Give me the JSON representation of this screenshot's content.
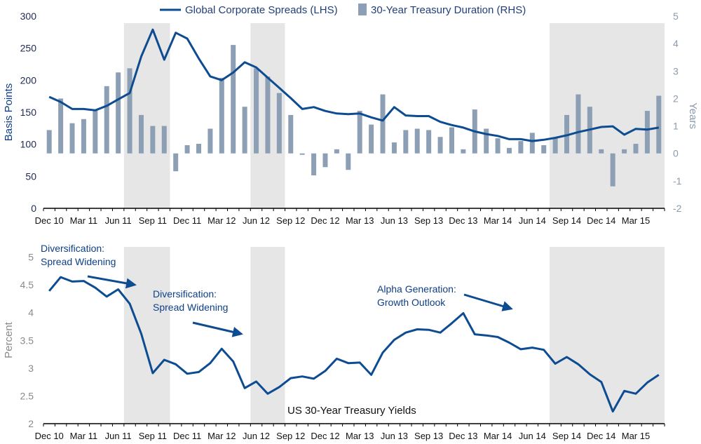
{
  "legend": {
    "line_label": "Global Corporate Spreads (LHS)",
    "bar_label": "30-Year Treasury Duration (RHS)"
  },
  "colors": {
    "line": "#0e4c92",
    "bar": "#8d9fb4",
    "shade": "#e6e6e6"
  },
  "chart_data": [
    {
      "type": "bar",
      "position": "top",
      "ylabel_left": "Basis Points",
      "ylabel_right": "Years",
      "left_axis": {
        "ylim": [
          0,
          300
        ],
        "ticks": [
          0,
          50,
          100,
          150,
          200,
          250,
          300
        ]
      },
      "right_axis": {
        "ylim": [
          -2,
          5
        ],
        "ticks": [
          -2,
          -1,
          0,
          1,
          2,
          3,
          4,
          5
        ]
      },
      "x_labels": [
        "Dec 10",
        "Mar 11",
        "Jun 11",
        "Sep 11",
        "Dec 11",
        "Mar 12",
        "Jun 12",
        "Sep 12",
        "Dec 12",
        "Mar 13",
        "Jun 13",
        "Sep 13",
        "Dec 13",
        "Mar 14",
        "Jun 14",
        "Sep 14",
        "Dec 14",
        "Mar 15"
      ],
      "shaded_periods": [
        [
          "2011-07",
          "2011-10"
        ],
        [
          "2012-06",
          "2012-08"
        ],
        [
          "2014-08",
          "2015-05"
        ]
      ],
      "series": [
        {
          "name": "Global Corporate Spreads (LHS)",
          "type": "line",
          "axis": "left",
          "x": [
            "2010-12",
            "2011-01",
            "2011-02",
            "2011-03",
            "2011-04",
            "2011-05",
            "2011-06",
            "2011-07",
            "2011-08",
            "2011-09",
            "2011-10",
            "2011-11",
            "2011-12",
            "2012-01",
            "2012-02",
            "2012-03",
            "2012-04",
            "2012-05",
            "2012-06",
            "2012-07",
            "2012-08",
            "2012-09",
            "2012-10",
            "2012-11",
            "2012-12",
            "2013-01",
            "2013-02",
            "2013-03",
            "2013-04",
            "2013-05",
            "2013-06",
            "2013-07",
            "2013-08",
            "2013-09",
            "2013-10",
            "2013-11",
            "2013-12",
            "2014-01",
            "2014-02",
            "2014-03",
            "2014-04",
            "2014-05",
            "2014-06",
            "2014-07",
            "2014-08",
            "2014-09",
            "2014-10",
            "2014-11",
            "2014-12",
            "2015-01",
            "2015-02",
            "2015-03",
            "2015-04",
            "2015-05"
          ],
          "values": [
            174,
            166,
            155,
            155,
            153,
            160,
            170,
            180,
            237,
            279,
            232,
            274,
            265,
            234,
            206,
            200,
            212,
            228,
            220,
            204,
            188,
            172,
            155,
            158,
            152,
            148,
            147,
            148,
            142,
            137,
            158,
            145,
            144,
            144,
            135,
            130,
            126,
            120,
            116,
            113,
            108,
            108,
            105,
            107,
            110,
            114,
            119,
            123,
            127,
            128,
            115,
            124,
            123,
            126
          ]
        },
        {
          "name": "30-Year Treasury Duration (RHS)",
          "type": "bar",
          "axis": "right",
          "x": [
            "2010-12",
            "2011-01",
            "2011-02",
            "2011-03",
            "2011-04",
            "2011-05",
            "2011-06",
            "2011-07",
            "2011-08",
            "2011-09",
            "2011-10",
            "2011-11",
            "2011-12",
            "2012-01",
            "2012-02",
            "2012-03",
            "2012-04",
            "2012-05",
            "2012-06",
            "2012-07",
            "2012-08",
            "2012-09",
            "2012-10",
            "2012-11",
            "2012-12",
            "2013-01",
            "2013-02",
            "2013-03",
            "2013-04",
            "2013-05",
            "2013-06",
            "2013-07",
            "2013-08",
            "2013-09",
            "2013-10",
            "2013-11",
            "2013-12",
            "2014-01",
            "2014-02",
            "2014-03",
            "2014-04",
            "2014-05",
            "2014-06",
            "2014-07",
            "2014-08",
            "2014-09",
            "2014-10",
            "2014-11",
            "2014-12",
            "2015-01",
            "2015-02",
            "2015-03",
            "2015-04",
            "2015-05"
          ],
          "values": [
            0.85,
            2.0,
            1.1,
            1.25,
            1.6,
            2.45,
            2.95,
            3.1,
            1.4,
            1.0,
            1.0,
            -0.65,
            0.3,
            0.35,
            0.9,
            2.75,
            3.95,
            1.7,
            3.1,
            2.8,
            2.2,
            1.4,
            -0.05,
            -0.8,
            -0.5,
            0.15,
            -0.6,
            1.55,
            1.05,
            2.15,
            0.4,
            0.85,
            0.9,
            0.85,
            0.6,
            0.95,
            0.15,
            1.6,
            0.9,
            0.55,
            0.2,
            0.45,
            0.75,
            0.3,
            0.55,
            1.4,
            2.15,
            1.7,
            0.15,
            -1.2,
            0.15,
            0.35,
            1.55,
            2.1
          ]
        }
      ]
    },
    {
      "type": "line",
      "position": "bottom",
      "title": "US 30-Year Treasury Yields",
      "ylabel": "Percent",
      "ylim": [
        2,
        5.5
      ],
      "ticks": [
        2,
        2.5,
        3,
        3.5,
        4,
        4.5,
        5
      ],
      "x_labels": [
        "Dec 10",
        "Mar 11",
        "Jun 11",
        "Sep 11",
        "Dec 11",
        "Mar 12",
        "Jun 12",
        "Sep 12",
        "Dec 12",
        "Mar 13",
        "Jun 13",
        "Sep 13",
        "Dec 13",
        "Mar 14",
        "Jun 14",
        "Sep 14",
        "Dec 14",
        "Mar 15"
      ],
      "shaded_periods": [
        [
          "2011-07",
          "2011-10"
        ],
        [
          "2012-06",
          "2012-08"
        ],
        [
          "2014-08",
          "2015-05"
        ]
      ],
      "annotations": [
        {
          "text": [
            "Diversification:",
            "Spread Widening"
          ],
          "arrow_to": "2011-08"
        },
        {
          "text": [
            "Diversification:",
            "Spread Widening"
          ],
          "arrow_to": "2012-08"
        },
        {
          "text": [
            "Alpha Generation:",
            "Growth Outlook"
          ],
          "arrow_to": "2014-02"
        }
      ],
      "series": [
        {
          "name": "",
          "x": [
            "2010-12",
            "2011-01",
            "2011-02",
            "2011-03",
            "2011-04",
            "2011-05",
            "2011-06",
            "2011-07",
            "2011-08",
            "2011-09",
            "2011-10",
            "2011-11",
            "2011-12",
            "2012-01",
            "2012-02",
            "2012-03",
            "2012-04",
            "2012-05",
            "2012-06",
            "2012-07",
            "2012-08",
            "2012-09",
            "2012-10",
            "2012-11",
            "2012-12",
            "2013-01",
            "2013-02",
            "2013-03",
            "2013-04",
            "2013-05",
            "2013-06",
            "2013-07",
            "2013-08",
            "2013-09",
            "2013-10",
            "2013-11",
            "2013-12",
            "2014-01",
            "2014-02",
            "2014-03",
            "2014-04",
            "2014-05",
            "2014-06",
            "2014-07",
            "2014-08",
            "2014-09",
            "2014-10",
            "2014-11",
            "2014-12",
            "2015-01",
            "2015-02",
            "2015-03",
            "2015-04",
            "2015-05"
          ],
          "values": [
            4.39,
            4.64,
            4.56,
            4.57,
            4.45,
            4.29,
            4.42,
            4.16,
            3.62,
            2.91,
            3.15,
            3.07,
            2.9,
            2.93,
            3.09,
            3.35,
            3.12,
            2.64,
            2.76,
            2.54,
            2.66,
            2.82,
            2.85,
            2.81,
            2.95,
            3.17,
            3.09,
            3.1,
            2.88,
            3.28,
            3.51,
            3.64,
            3.7,
            3.69,
            3.64,
            3.81,
            3.99,
            3.61,
            3.59,
            3.56,
            3.46,
            3.34,
            3.37,
            3.33,
            3.08,
            3.2,
            3.07,
            2.89,
            2.75,
            2.22,
            2.59,
            2.54,
            2.74,
            2.88
          ]
        }
      ]
    }
  ]
}
